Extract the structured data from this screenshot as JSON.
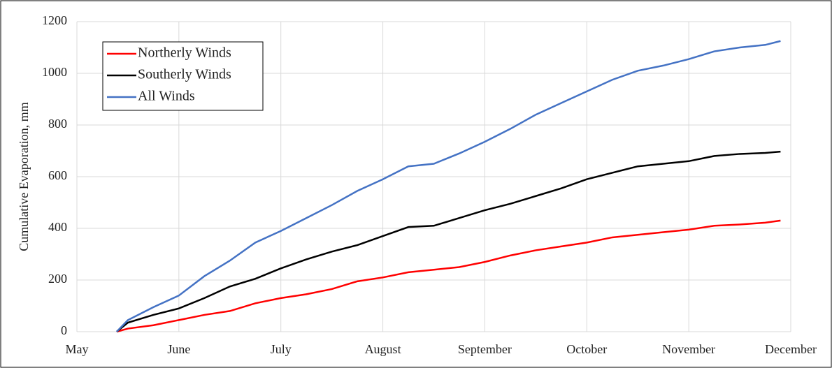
{
  "chart_data": {
    "type": "line",
    "y_label": "Cumulative Evaporation,  mm",
    "x": [
      0.39,
      0.5,
      0.75,
      1.0,
      1.25,
      1.5,
      1.75,
      2.0,
      2.25,
      2.5,
      2.75,
      3.0,
      3.25,
      3.5,
      3.75,
      4.0,
      4.25,
      4.5,
      4.75,
      5.0,
      5.25,
      5.5,
      5.75,
      6.0,
      6.25,
      6.5,
      6.75,
      6.9
    ],
    "series": [
      {
        "name": "Northerly Winds",
        "color": "#ff0000",
        "values": [
          0,
          12,
          25,
          45,
          65,
          80,
          110,
          130,
          145,
          165,
          195,
          210,
          230,
          240,
          250,
          270,
          295,
          315,
          330,
          345,
          365,
          375,
          385,
          395,
          410,
          415,
          422,
          430
        ]
      },
      {
        "name": "Southerly Winds",
        "color": "#000000",
        "values": [
          0,
          35,
          65,
          90,
          130,
          175,
          205,
          245,
          280,
          310,
          335,
          370,
          405,
          410,
          440,
          470,
          495,
          525,
          555,
          590,
          615,
          640,
          650,
          660,
          680,
          688,
          692,
          697
        ]
      },
      {
        "name": "All Winds",
        "color": "#4472c4",
        "values": [
          0,
          45,
          95,
          140,
          215,
          275,
          345,
          390,
          440,
          490,
          545,
          590,
          640,
          650,
          690,
          735,
          785,
          840,
          885,
          930,
          975,
          1010,
          1030,
          1055,
          1085,
          1100,
          1110,
          1125
        ]
      }
    ],
    "xlim": [
      0,
      7
    ],
    "xticks": [
      {
        "value": 0,
        "label": "May"
      },
      {
        "value": 1,
        "label": "June"
      },
      {
        "value": 2,
        "label": "July"
      },
      {
        "value": 3,
        "label": "August"
      },
      {
        "value": 4,
        "label": "September"
      },
      {
        "value": 5,
        "label": "October"
      },
      {
        "value": 6,
        "label": "November"
      },
      {
        "value": 7,
        "label": "December"
      }
    ],
    "ylim": [
      0,
      1200
    ],
    "yticks": [
      0,
      200,
      400,
      600,
      800,
      1000,
      1200
    ],
    "grid": true,
    "legend": "upper left"
  }
}
